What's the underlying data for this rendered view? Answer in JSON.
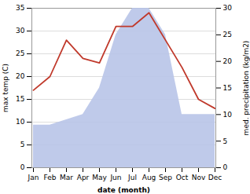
{
  "chart_data": {
    "type": "line",
    "xlabel": "date (month)",
    "ylabel": "max temp (C)",
    "y2label": "med. precipitation (kg/m2)",
    "categories": [
      "Jan",
      "Feb",
      "Mar",
      "Apr",
      "May",
      "Jun",
      "Jul",
      "Aug",
      "Sep",
      "Oct",
      "Nov",
      "Dec"
    ],
    "series": [
      {
        "type": "area",
        "axis": "y2",
        "color": "#b8c4e8",
        "values": [
          8,
          8,
          9,
          10,
          15,
          25,
          30,
          30,
          25,
          10,
          10,
          10
        ]
      },
      {
        "type": "line",
        "color": "#c0392b",
        "values": [
          17,
          20,
          28,
          24,
          23,
          31,
          31,
          34,
          28,
          22,
          15,
          13
        ]
      }
    ],
    "ylim": [
      0,
      35
    ],
    "yticks": [
      0,
      5,
      10,
      15,
      20,
      25,
      30,
      35
    ],
    "y2lim": [
      0,
      30
    ],
    "y2ticks": [
      0,
      5,
      10,
      15,
      20,
      25,
      30
    ],
    "grid": true
  }
}
